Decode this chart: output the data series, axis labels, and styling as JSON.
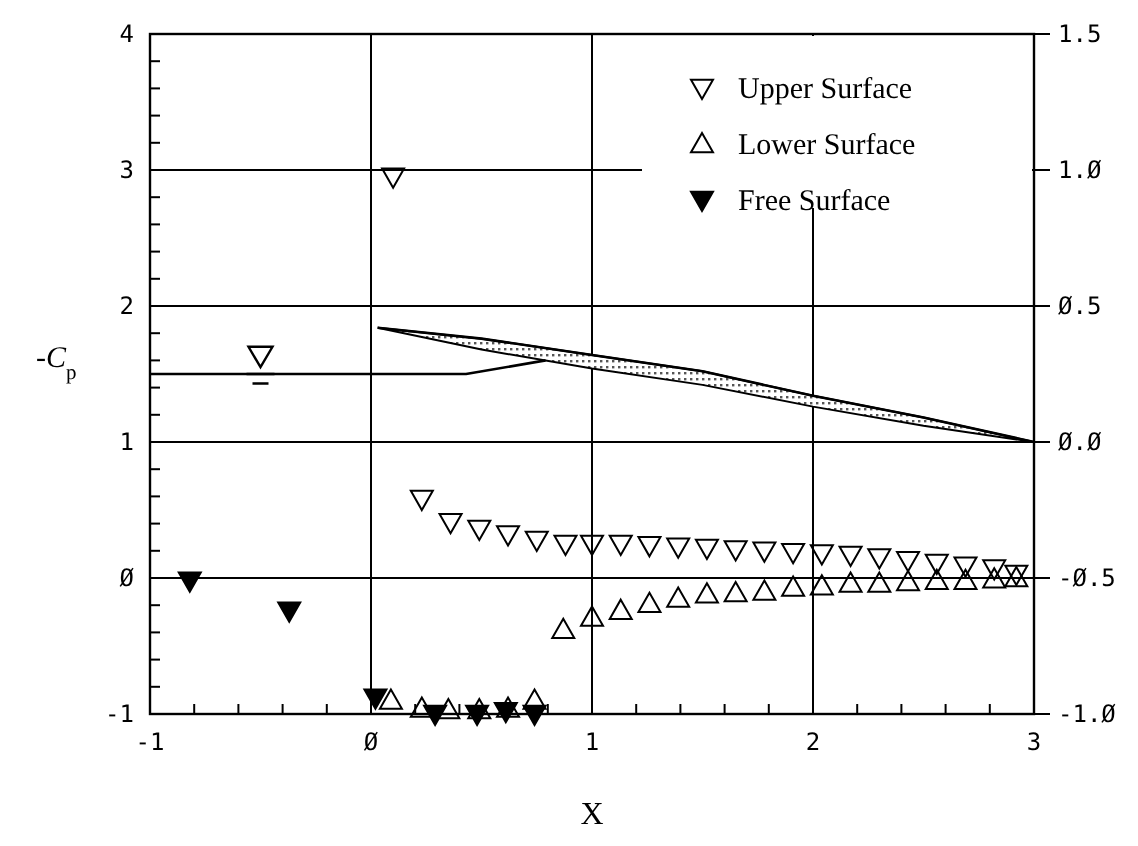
{
  "chart_data": {
    "type": "scatter",
    "xlabel": "X",
    "ylabel": "-C$_{p}$",
    "xlim": [
      -1,
      3
    ],
    "ylim": [
      -1,
      4
    ],
    "y2lim": [
      -1,
      1.5
    ],
    "xticks": [
      -1,
      {
        "value": -0.8,
        "label": null
      },
      {
        "value": -0.6,
        "label": null
      },
      {
        "value": -0.4,
        "label": null
      },
      {
        "value": -0.2,
        "label": null
      },
      {
        "value": 0,
        "label": "Ø"
      },
      {
        "value": 0.2,
        "label": null
      },
      {
        "value": 0.4,
        "label": null
      },
      {
        "value": 0.6,
        "label": null
      },
      {
        "value": 0.8,
        "label": null
      },
      1,
      {
        "value": 1.2,
        "label": null
      },
      {
        "value": 1.4,
        "label": null
      },
      {
        "value": 1.6,
        "label": null
      },
      {
        "value": 1.8,
        "label": null
      },
      2,
      {
        "value": 2.2,
        "label": null
      },
      {
        "value": 2.4,
        "label": null
      },
      {
        "value": 2.6,
        "label": null
      },
      {
        "value": 2.8,
        "label": null
      },
      3
    ],
    "yticks": [
      -1,
      {
        "value": -0.8,
        "label": null
      },
      {
        "value": -0.6,
        "label": null
      },
      {
        "value": -0.4,
        "label": null
      },
      {
        "value": -0.2,
        "label": null
      },
      {
        "value": 0,
        "label": "Ø"
      },
      {
        "value": 0.2,
        "label": null
      },
      {
        "value": 0.4,
        "label": null
      },
      {
        "value": 0.6,
        "label": null
      },
      {
        "value": 0.8,
        "label": null
      },
      1,
      {
        "value": 1.2,
        "label": null
      },
      {
        "value": 1.4,
        "label": null
      },
      {
        "value": 1.6,
        "label": null
      },
      {
        "value": 1.8,
        "label": null
      },
      2,
      {
        "value": 2.2,
        "label": null
      },
      {
        "value": 2.4,
        "label": null
      },
      {
        "value": 2.6,
        "label": null
      },
      {
        "value": 2.8,
        "label": null
      },
      3,
      {
        "value": 3.2,
        "label": null
      },
      {
        "value": 3.4,
        "label": null
      },
      {
        "value": 3.6,
        "label": null
      },
      {
        "value": 3.8,
        "label": null
      },
      4
    ],
    "y2ticks": [
      {
        "value": -1,
        "label": "-1.Ø"
      },
      {
        "value": -0.5,
        "label": "-Ø.5"
      },
      {
        "value": 0,
        "label": "Ø.Ø"
      },
      {
        "value": 0.5,
        "label": "Ø.5"
      },
      {
        "value": 1,
        "label": "1.Ø"
      },
      {
        "value": 1.5,
        "label": "1.5"
      }
    ],
    "grid": true,
    "legend": "top right",
    "series": [
      {
        "name": "Upper Surface",
        "marker": "triangle-down",
        "color": "#000000",
        "x": [
          0.1,
          0.23,
          0.36,
          0.49,
          0.62,
          0.75,
          0.88,
          1.0,
          1.13,
          1.26,
          1.39,
          1.52,
          1.65,
          1.78,
          1.91,
          2.04,
          2.17,
          2.3,
          2.43,
          2.56,
          2.69,
          2.82,
          2.92
        ],
        "values": [
          2.95,
          0.58,
          0.41,
          0.36,
          0.32,
          0.28,
          0.25,
          0.25,
          0.25,
          0.24,
          0.23,
          0.22,
          0.21,
          0.2,
          0.19,
          0.18,
          0.17,
          0.15,
          0.13,
          0.11,
          0.09,
          0.07,
          0.03
        ]
      },
      {
        "name": "Lower Surface",
        "marker": "triangle",
        "color": "#000000",
        "x": [
          0.09,
          0.23,
          0.35,
          0.49,
          0.62,
          0.74,
          0.87,
          1.0,
          1.13,
          1.26,
          1.39,
          1.52,
          1.65,
          1.78,
          1.91,
          2.04,
          2.17,
          2.3,
          2.43,
          2.56,
          2.69,
          2.82,
          2.92
        ],
        "values": [
          -0.9,
          -0.96,
          -0.97,
          -0.97,
          -0.96,
          -0.9,
          -0.38,
          -0.29,
          -0.24,
          -0.19,
          -0.15,
          -0.12,
          -0.11,
          -0.1,
          -0.07,
          -0.06,
          -0.04,
          -0.04,
          -0.03,
          -0.02,
          -0.02,
          -0.01,
          0.0
        ]
      },
      {
        "name": "Free Surface",
        "marker": "triangle-down-filled",
        "color": "#000000",
        "x": [
          -0.82,
          -0.37,
          0.02,
          0.29,
          0.48,
          0.61,
          0.74
        ],
        "values": [
          -0.02,
          -0.24,
          -0.88,
          -1.0,
          -1.0,
          -0.98,
          -1.0
        ]
      },
      {
        "type": "line",
        "axis": "y2",
        "color": "#000000",
        "x": [
          0.03,
          0.5,
          1.0,
          1.5,
          2.0,
          2.5,
          3.0
        ],
        "values": [
          0.42,
          0.38,
          0.32,
          0.26,
          0.17,
          0.09,
          0.0
        ],
        "upper": [
          0.42,
          0.38,
          0.32,
          0.26,
          0.17,
          0.09,
          0.0
        ],
        "lower": [
          0.42,
          0.34,
          0.27,
          0.21,
          0.13,
          0.06,
          0.0
        ]
      },
      {
        "type": "line",
        "axis": "y2",
        "color": "#000000",
        "x": [
          -1,
          0,
          0.43,
          0.79
        ],
        "values": [
          0.25,
          0.25,
          0.25,
          0.3
        ]
      }
    ]
  }
}
